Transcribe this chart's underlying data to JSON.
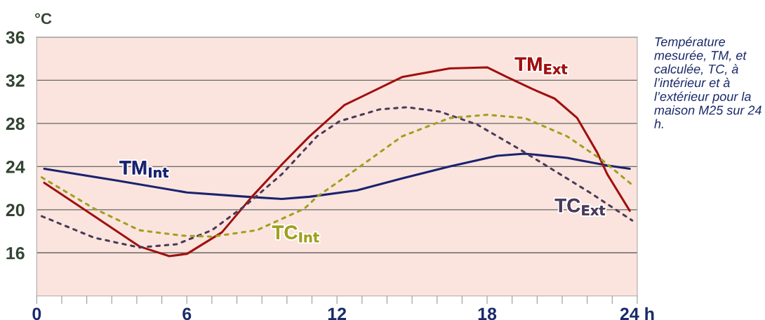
{
  "chart_data": {
    "type": "line",
    "ylabel": "°C",
    "annotations": [
      "Température mesurée, TM, et calculée, TC, à l’intérieur et à l’extérieur pour la maison M25 sur 24 h."
    ],
    "xlim": [
      0,
      24
    ],
    "ylim": [
      12,
      36
    ],
    "xticks": [
      0,
      {
        "value": 1,
        "label": null
      },
      {
        "value": 2,
        "label": null
      },
      {
        "value": 3,
        "label": null
      },
      {
        "value": 4,
        "label": null
      },
      {
        "value": 5,
        "label": null
      },
      6,
      {
        "value": 7,
        "label": null
      },
      {
        "value": 8,
        "label": null
      },
      {
        "value": 9,
        "label": null
      },
      {
        "value": 10,
        "label": null
      },
      {
        "value": 11,
        "label": null
      },
      12,
      {
        "value": 13,
        "label": null
      },
      {
        "value": 14,
        "label": null
      },
      {
        "value": 15,
        "label": null
      },
      {
        "value": 16,
        "label": null
      },
      {
        "value": 17,
        "label": null
      },
      18,
      {
        "value": 19,
        "label": null
      },
      {
        "value": 20,
        "label": null
      },
      {
        "value": 21,
        "label": null
      },
      {
        "value": 22,
        "label": null
      },
      {
        "value": 23,
        "label": null
      },
      {
        "value": 24,
        "label": "24 h"
      }
    ],
    "yticks": [
      16,
      20,
      24,
      28,
      32,
      36
    ],
    "grid": "y",
    "marker": "none",
    "series": [
      {
        "name": "TM$_{Int}$",
        "color": "#1a2370",
        "line_style": "solid",
        "x": [
          0.3,
          3.2,
          6.0,
          8.4,
          9.8,
          10.9,
          12.8,
          14.6,
          16.5,
          18.4,
          19.5,
          21.2,
          22.8,
          23.7
        ],
        "values": [
          23.8,
          22.7,
          21.6,
          21.2,
          21.0,
          21.2,
          21.8,
          22.9,
          24.0,
          25.0,
          25.2,
          24.8,
          24.1,
          23.8
        ]
      },
      {
        "name": "TM$_{Ext}$",
        "color": "#a01010",
        "line_style": "solid",
        "x": [
          0.3,
          2.3,
          4.1,
          5.3,
          6.0,
          7.4,
          8.6,
          9.8,
          10.9,
          12.3,
          14.6,
          16.5,
          18.0,
          18.8,
          19.8,
          20.7,
          21.6,
          22.4,
          22.8,
          23.7
        ],
        "values": [
          22.5,
          19.4,
          16.6,
          15.7,
          15.9,
          17.9,
          21.2,
          24.2,
          26.8,
          29.7,
          32.3,
          33.1,
          33.2,
          32.3,
          31.2,
          30.3,
          28.5,
          25.3,
          23.3,
          19.9
        ]
      },
      {
        "name": "TC$_{Ext}$",
        "color": "#4a3a5a",
        "line_style": "dashed",
        "x": [
          0.2,
          2.3,
          4.1,
          5.6,
          7.0,
          8.4,
          9.8,
          11.2,
          12.1,
          13.7,
          14.8,
          16.1,
          17.6,
          19.3,
          20.7,
          22.1,
          23.8
        ],
        "values": [
          19.4,
          17.4,
          16.5,
          16.8,
          18.1,
          20.5,
          23.3,
          26.8,
          28.2,
          29.3,
          29.5,
          29.1,
          27.9,
          25.6,
          23.6,
          21.6,
          19.0
        ]
      },
      {
        "name": "TC$_{Int}$",
        "color": "#a0a020",
        "line_style": "dashed",
        "x": [
          0.2,
          2.3,
          4.1,
          5.8,
          7.0,
          8.8,
          10.7,
          11.2,
          12.8,
          14.6,
          16.5,
          18.0,
          19.5,
          21.2,
          22.6,
          23.8
        ],
        "values": [
          23.0,
          20.1,
          18.1,
          17.6,
          17.5,
          18.1,
          20.1,
          21.2,
          23.8,
          26.8,
          28.5,
          28.8,
          28.5,
          26.8,
          24.6,
          22.3
        ]
      }
    ]
  }
}
